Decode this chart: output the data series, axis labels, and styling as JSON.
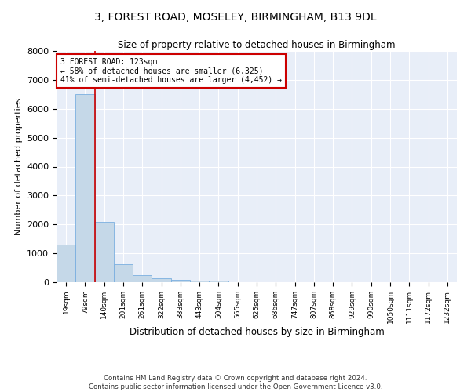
{
  "title_line1": "3, FOREST ROAD, MOSELEY, BIRMINGHAM, B13 9DL",
  "title_line2": "Size of property relative to detached houses in Birmingham",
  "xlabel": "Distribution of detached houses by size in Birmingham",
  "ylabel": "Number of detached properties",
  "bar_color": "#c5d8e8",
  "bar_edge_color": "#7aafe0",
  "background_color": "#e8eef8",
  "grid_color": "#ffffff",
  "categories": [
    "19sqm",
    "79sqm",
    "140sqm",
    "201sqm",
    "261sqm",
    "322sqm",
    "383sqm",
    "443sqm",
    "504sqm",
    "565sqm",
    "625sqm",
    "686sqm",
    "747sqm",
    "807sqm",
    "868sqm",
    "929sqm",
    "990sqm",
    "1050sqm",
    "1111sqm",
    "1172sqm",
    "1232sqm"
  ],
  "values": [
    1300,
    6500,
    2075,
    620,
    250,
    130,
    90,
    55,
    60,
    0,
    0,
    0,
    0,
    0,
    0,
    0,
    0,
    0,
    0,
    0,
    0
  ],
  "ylim": [
    0,
    8000
  ],
  "yticks": [
    0,
    1000,
    2000,
    3000,
    4000,
    5000,
    6000,
    7000,
    8000
  ],
  "vline_color": "#cc0000",
  "annotation_text": "3 FOREST ROAD: 123sqm\n← 58% of detached houses are smaller (6,325)\n41% of semi-detached houses are larger (4,452) →",
  "annotation_box_color": "#ffffff",
  "annotation_box_edge_color": "#cc0000",
  "footer_line1": "Contains HM Land Registry data © Crown copyright and database right 2024.",
  "footer_line2": "Contains public sector information licensed under the Open Government Licence v3.0."
}
